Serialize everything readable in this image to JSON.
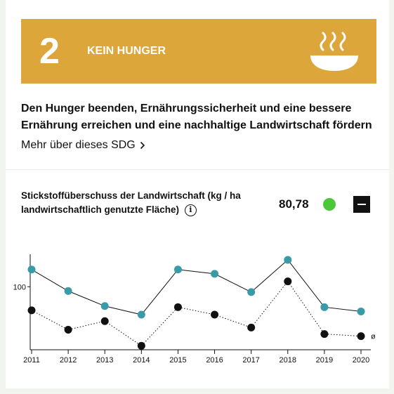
{
  "sdg": {
    "number": "2",
    "name": "KEIN HUNGER",
    "color": "#DDA63A",
    "icon": "bowl-icon"
  },
  "headline": "Den Hunger beenden, Ernährungssicherheit und eine bessere Ernährung erreichen und eine nachhaltige Landwirtschaft fördern",
  "more_link": "Mehr über dieses SDG",
  "indicator": {
    "title": "Stickstoffüberschuss der Landwirtschaft (kg / ha landwirtschaftlich genutzte Fläche)",
    "value": "80,78",
    "status_color": "#4CC73A",
    "collapse_icon": "minus-icon"
  },
  "chart_data": {
    "type": "line",
    "categories": [
      "2011",
      "2012",
      "2013",
      "2014",
      "2015",
      "2016",
      "2017",
      "2018",
      "2019",
      "2020"
    ],
    "ylim": [
      42,
      125
    ],
    "yticks": [
      100
    ],
    "average_label": "ø",
    "series": [
      {
        "values": [
          116,
          96,
          82,
          74,
          116,
          112,
          95,
          125,
          81,
          77
        ],
        "color": "#3A9BA8",
        "style": "solid"
      },
      {
        "values": [
          78,
          60,
          68,
          45,
          81,
          74,
          62,
          105,
          56,
          54
        ],
        "color": "#111111",
        "style": "dotted"
      }
    ]
  }
}
